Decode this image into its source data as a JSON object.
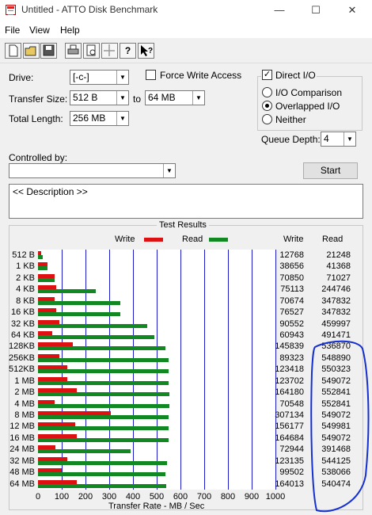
{
  "window": {
    "title": "Untitled - ATTO Disk Benchmark",
    "controls": [
      "—",
      "☐",
      "✕"
    ]
  },
  "menu": [
    "File",
    "View",
    "Help"
  ],
  "toolbar": [
    "new",
    "open",
    "save",
    "print",
    "print-preview",
    "move",
    "help",
    "context-help"
  ],
  "form": {
    "drive_label": "Drive:",
    "drive_value": "[-c-]",
    "transfer_size_label": "Transfer Size:",
    "transfer_from": "512 B",
    "to_label": "to",
    "transfer_to": "64 MB",
    "total_length_label": "Total Length:",
    "total_length_value": "256 MB",
    "force_write_label": "Force Write Access",
    "force_write_checked": false,
    "direct_io_label": "Direct I/O",
    "direct_io_checked": true,
    "io_comparison_label": "I/O Comparison",
    "overlapped_io_label": "Overlapped I/O",
    "neither_label": "Neither",
    "queue_depth_label": "Queue Depth:",
    "queue_depth_value": "4",
    "controlled_by_label": "Controlled by:",
    "controlled_by_value": "",
    "start_label": "Start",
    "description": "<< Description >>"
  },
  "results": {
    "title": "Test Results",
    "legend_write": "Write",
    "legend_read": "Read",
    "col_write": "Write",
    "col_read": "Read",
    "xlabel": "Transfer Rate - MB / Sec",
    "colors": {
      "write": "#dd1111",
      "read": "#118822",
      "grid": "#1a1acc",
      "annotation": "#1530d0"
    }
  },
  "chart_data": {
    "type": "bar",
    "title": "Test Results",
    "xlabel": "Transfer Rate - MB / Sec",
    "xlim": [
      0,
      1000
    ],
    "xticks": [
      0,
      100,
      200,
      300,
      400,
      500,
      600,
      700,
      800,
      900,
      1000
    ],
    "categories": [
      "512 B",
      "1 KB",
      "2 KB",
      "4 KB",
      "8 KB",
      "16 KB",
      "32 KB",
      "64 KB",
      "128KB",
      "256KB",
      "512KB",
      "1 MB",
      "2 MB",
      "4 MB",
      "8 MB",
      "12 MB",
      "16 MB",
      "24 MB",
      "32 MB",
      "48 MB",
      "64 MB"
    ],
    "series": [
      {
        "name": "Write",
        "values": [
          12.8,
          38.7,
          70.9,
          75.1,
          70.7,
          76.5,
          90.6,
          60.9,
          145.8,
          89.3,
          123.4,
          123.7,
          164.2,
          70.5,
          307.1,
          156.2,
          164.7,
          72.9,
          123.1,
          99.5,
          164.0
        ],
        "labels": [
          "12768",
          "38656",
          "70850",
          "75113",
          "70674",
          "76527",
          "90552",
          "60943",
          "145839",
          "89323",
          "123418",
          "123702",
          "164180",
          "70548",
          "307134",
          "156177",
          "164684",
          "72944",
          "123135",
          "99502",
          "164013"
        ]
      },
      {
        "name": "Read",
        "values": [
          21.2,
          41.4,
          71.0,
          244.7,
          347.8,
          347.8,
          460.0,
          491.5,
          536.9,
          548.9,
          550.3,
          549.1,
          552.8,
          552.8,
          549.1,
          550.0,
          549.1,
          391.5,
          544.1,
          538.1,
          540.5
        ],
        "labels": [
          "21248",
          "41368",
          "71027",
          "244746",
          "347832",
          "347832",
          "459997",
          "491471",
          "536870",
          "548890",
          "550323",
          "549072",
          "552841",
          "552841",
          "549072",
          "549981",
          "549072",
          "391468",
          "544125",
          "538066",
          "540474"
        ]
      }
    ]
  }
}
